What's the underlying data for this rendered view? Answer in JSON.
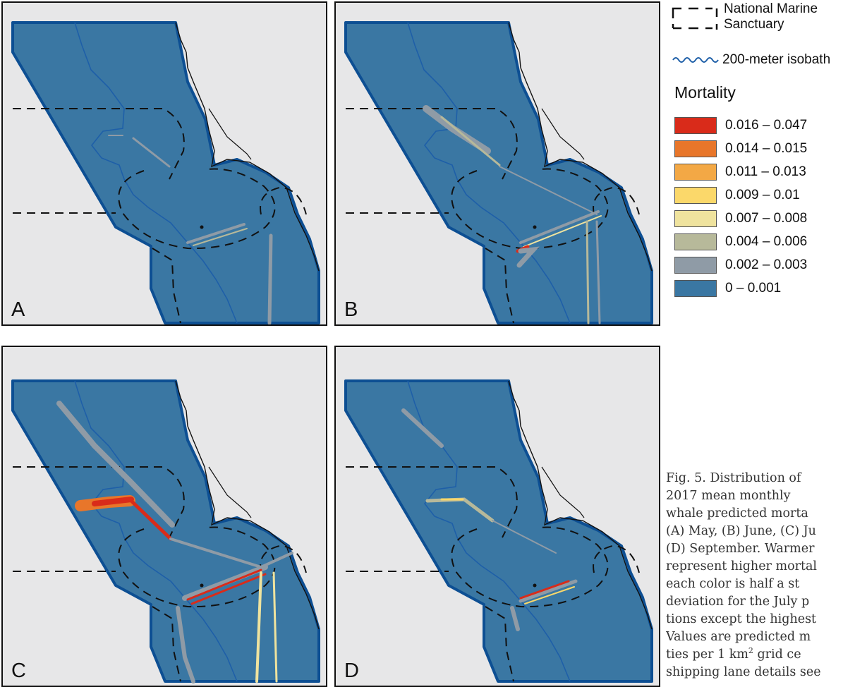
{
  "panels": [
    {
      "label": "A",
      "month": "May"
    },
    {
      "label": "B",
      "month": "June"
    },
    {
      "label": "C",
      "month": "July"
    },
    {
      "label": "D",
      "month": "September"
    }
  ],
  "legend": {
    "sanctuary_label": "National Marine Sanctuary",
    "isobath_label": "200-meter isobath",
    "title": "Mortality",
    "classes": [
      {
        "range": "0.016 – 0.047",
        "color": "#d92b1a"
      },
      {
        "range": "0.014 – 0.015",
        "color": "#e8762a"
      },
      {
        "range": "0.011 – 0.013",
        "color": "#f3a845"
      },
      {
        "range": "0.009 – 0.01",
        "color": "#fbd86a"
      },
      {
        "range": "0.007 – 0.008",
        "color": "#efe39e"
      },
      {
        "range": "0.004 – 0.006",
        "color": "#b7b99a"
      },
      {
        "range": "0.002 – 0.003",
        "color": "#8f9ba6"
      },
      {
        "range": "0 – 0.001",
        "color": "#3a77a3"
      }
    ]
  },
  "colors": {
    "ocean": "#3a77a3",
    "land": "#e7e7e8",
    "isobath": "#1e5fa8",
    "boundary": "#0d4f93"
  },
  "caption": {
    "lines": [
      "Fig. 5. Distribution of",
      "2017   mean   monthly",
      "whale predicted morta",
      "(A) May, (B) June, (C) Ju",
      "(D) September. Warmer",
      "represent higher mortal",
      "each color is half a st",
      "deviation for the July p",
      "tions except the highest",
      "Values are predicted m",
      "ties per 1 km",
      "shipping lane details see"
    ],
    "superscript": "2",
    "after_superscript": " grid ce"
  }
}
